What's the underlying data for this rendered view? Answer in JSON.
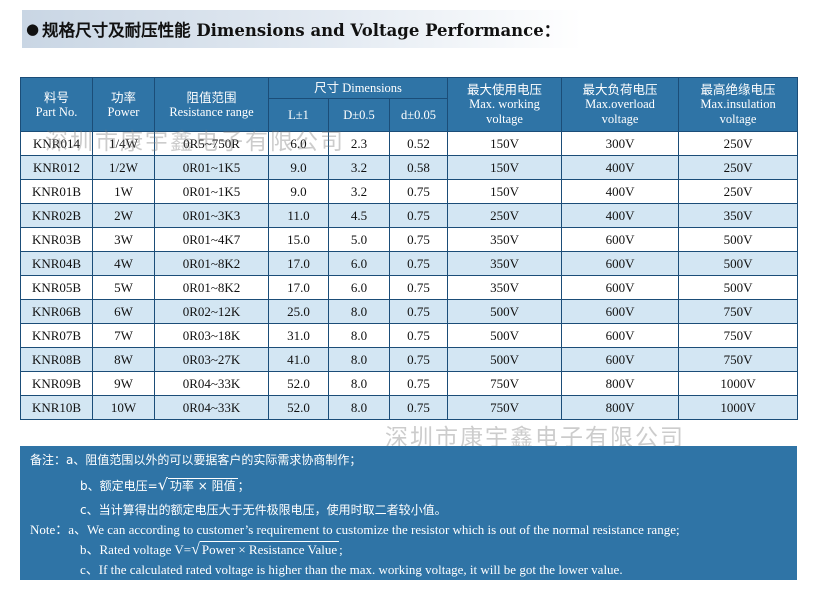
{
  "heading": {
    "bullet": "●",
    "text": "规格尺寸及耐压性能 Dimensions and Voltage Performance："
  },
  "table": {
    "headers": {
      "part": {
        "zh": "料号",
        "en": "Part No."
      },
      "power": {
        "zh": "功率",
        "en": "Power"
      },
      "resistance": {
        "zh": "阻值范围",
        "en": "Resistance range"
      },
      "dimensions": "尺寸 Dimensions",
      "L": "L±1",
      "D": "D±0.5",
      "d": "d±0.05",
      "work": {
        "zh": "最大使用电压",
        "en1": "Max. working",
        "en2": "voltage"
      },
      "overload": {
        "zh": "最大负荷电压",
        "en1": "Max.overload",
        "en2": "voltage"
      },
      "insulation": {
        "zh": "最高绝缘电压",
        "en1": "Max.insulation",
        "en2": "voltage"
      }
    },
    "rows": [
      [
        "KNR014",
        "1/4W",
        "0R5~750R",
        "6.0",
        "2.3",
        "0.52",
        "150V",
        "300V",
        "250V"
      ],
      [
        "KNR012",
        "1/2W",
        "0R01~1K5",
        "9.0",
        "3.2",
        "0.58",
        "150V",
        "400V",
        "250V"
      ],
      [
        "KNR01B",
        "1W",
        "0R01~1K5",
        "9.0",
        "3.2",
        "0.75",
        "150V",
        "400V",
        "250V"
      ],
      [
        "KNR02B",
        "2W",
        "0R01~3K3",
        "11.0",
        "4.5",
        "0.75",
        "250V",
        "400V",
        "350V"
      ],
      [
        "KNR03B",
        "3W",
        "0R01~4K7",
        "15.0",
        "5.0",
        "0.75",
        "350V",
        "600V",
        "500V"
      ],
      [
        "KNR04B",
        "4W",
        "0R01~8K2",
        "17.0",
        "6.0",
        "0.75",
        "350V",
        "600V",
        "500V"
      ],
      [
        "KNR05B",
        "5W",
        "0R01~8K2",
        "17.0",
        "6.0",
        "0.75",
        "350V",
        "600V",
        "500V"
      ],
      [
        "KNR06B",
        "6W",
        "0R02~12K",
        "25.0",
        "8.0",
        "0.75",
        "500V",
        "600V",
        "750V"
      ],
      [
        "KNR07B",
        "7W",
        "0R03~18K",
        "31.0",
        "8.0",
        "0.75",
        "500V",
        "600V",
        "750V"
      ],
      [
        "KNR08B",
        "8W",
        "0R03~27K",
        "41.0",
        "8.0",
        "0.75",
        "500V",
        "600V",
        "750V"
      ],
      [
        "KNR09B",
        "9W",
        "0R04~33K",
        "52.0",
        "8.0",
        "0.75",
        "750V",
        "800V",
        "1000V"
      ],
      [
        "KNR10B",
        "10W",
        "0R04~33K",
        "52.0",
        "8.0",
        "0.75",
        "750V",
        "800V",
        "1000V"
      ]
    ]
  },
  "watermark": "深圳市康宇鑫电子有限公司",
  "notes": {
    "zh_a": "备注：a、阻值范围以外的可以要据客户的实际需求协商制作；",
    "zh_b_prefix": "b、额定电压=",
    "zh_b_formula": "功率 × 阻值",
    "zh_b_suffix": "；",
    "zh_c": "c、当计算得出的额定电压大于无件极限电压，使用时取二者较小值。",
    "en_a": "Note：a、We can according to customer’s requirement to customize the resistor which is out of the normal resistance range;",
    "en_b_prefix": "b、Rated voltage V=",
    "en_b_formula": "Power × Resistance Value",
    "en_b_suffix": ";",
    "en_c": "c、If the calculated rated voltage is higher than the max. working voltage, it will be got the lower value.",
    "radical": "√"
  }
}
